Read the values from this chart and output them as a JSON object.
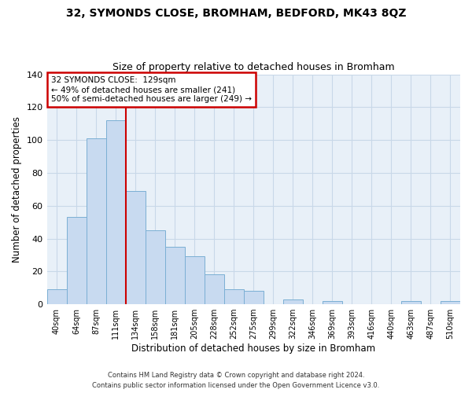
{
  "title1": "32, SYMONDS CLOSE, BROMHAM, BEDFORD, MK43 8QZ",
  "title2": "Size of property relative to detached houses in Bromham",
  "xlabel": "Distribution of detached houses by size in Bromham",
  "ylabel": "Number of detached properties",
  "bar_labels": [
    "40sqm",
    "64sqm",
    "87sqm",
    "111sqm",
    "134sqm",
    "158sqm",
    "181sqm",
    "205sqm",
    "228sqm",
    "252sqm",
    "275sqm",
    "299sqm",
    "322sqm",
    "346sqm",
    "369sqm",
    "393sqm",
    "416sqm",
    "440sqm",
    "463sqm",
    "487sqm",
    "510sqm"
  ],
  "bar_values": [
    9,
    53,
    101,
    112,
    69,
    45,
    35,
    29,
    18,
    9,
    8,
    0,
    3,
    0,
    2,
    0,
    0,
    0,
    2,
    0,
    2
  ],
  "bar_color": "#c8daf0",
  "bar_edge_color": "#7bafd4",
  "vline_x_index": 4,
  "vline_color": "#cc0000",
  "annotation_text": "32 SYMONDS CLOSE:  129sqm\n← 49% of detached houses are smaller (241)\n50% of semi-detached houses are larger (249) →",
  "annotation_box_edgecolor": "#cc0000",
  "ylim": [
    0,
    140
  ],
  "yticks": [
    0,
    20,
    40,
    60,
    80,
    100,
    120,
    140
  ],
  "footer1": "Contains HM Land Registry data © Crown copyright and database right 2024.",
  "footer2": "Contains public sector information licensed under the Open Government Licence v3.0.",
  "background_color": "#ffffff",
  "grid_color": "#c8d8e8",
  "axes_bg_color": "#e8f0f8"
}
